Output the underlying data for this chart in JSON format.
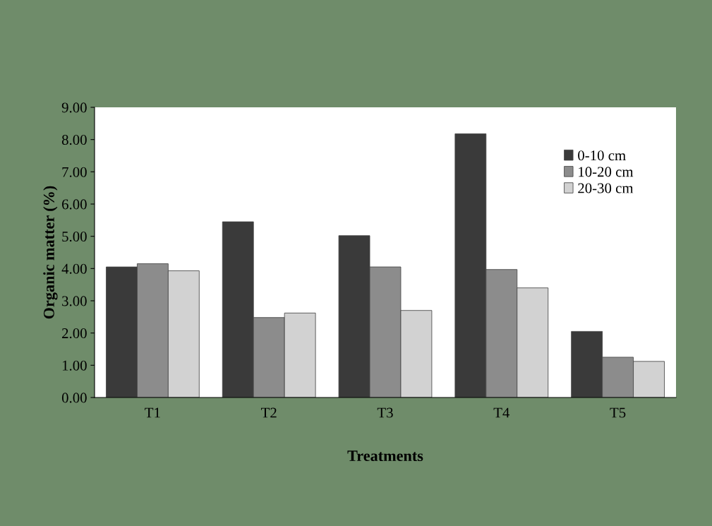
{
  "chart_data": {
    "type": "bar",
    "xlabel": "Treatments",
    "ylabel": "Organic matter (%)",
    "categories": [
      "T1",
      "T2",
      "T3",
      "T4",
      "T5"
    ],
    "series": [
      {
        "name": "0-10 cm",
        "color": "#3a3a3a",
        "values": [
          4.05,
          5.45,
          5.02,
          8.18,
          2.05
        ]
      },
      {
        "name": "10-20 cm",
        "color": "#8c8c8c",
        "values": [
          4.15,
          2.48,
          4.05,
          3.97,
          1.25
        ]
      },
      {
        "name": "20-30 cm",
        "color": "#d2d2d2",
        "values": [
          3.93,
          2.62,
          2.7,
          3.4,
          1.12
        ]
      }
    ],
    "ylim": [
      0,
      9
    ],
    "yticks": [
      {
        "value": 0,
        "label": "0.00"
      },
      {
        "value": 1,
        "label": "1.00"
      },
      {
        "value": 2,
        "label": "2.00"
      },
      {
        "value": 3,
        "label": "3.00"
      },
      {
        "value": 4,
        "label": "4.00"
      },
      {
        "value": 5,
        "label": "5.00"
      },
      {
        "value": 6,
        "label": "6.00"
      },
      {
        "value": 7,
        "label": "7.00"
      },
      {
        "value": 8,
        "label": "8.00"
      },
      {
        "value": 9,
        "label": "9.00"
      }
    ],
    "grid": false,
    "legend": "top right"
  }
}
